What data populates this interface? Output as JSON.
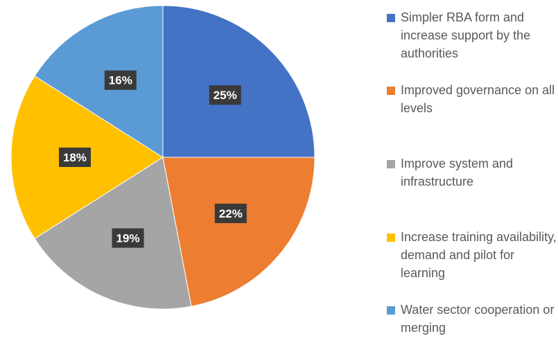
{
  "chart_data": {
    "type": "pie",
    "title": "",
    "start_angle_deg": 0,
    "direction": "clockwise",
    "legend_position": "right",
    "slices": [
      {
        "label": "Simpler RBA form and increase support by the authorities",
        "value": 25,
        "value_label": "25%",
        "color": "#4472C4"
      },
      {
        "label": "Improved governance on all levels",
        "value": 22,
        "value_label": "22%",
        "color": "#ED7D31"
      },
      {
        "label": "Improve system and infrastructure",
        "value": 19,
        "value_label": "19%",
        "color": "#A5A5A5"
      },
      {
        "label": "Increase training availability, demand and pilot for learning",
        "value": 18,
        "value_label": "18%",
        "color": "#FFC000"
      },
      {
        "label": "Water sector cooperation or merging",
        "value": 16,
        "value_label": "16%",
        "color": "#5B9BD5"
      }
    ]
  }
}
